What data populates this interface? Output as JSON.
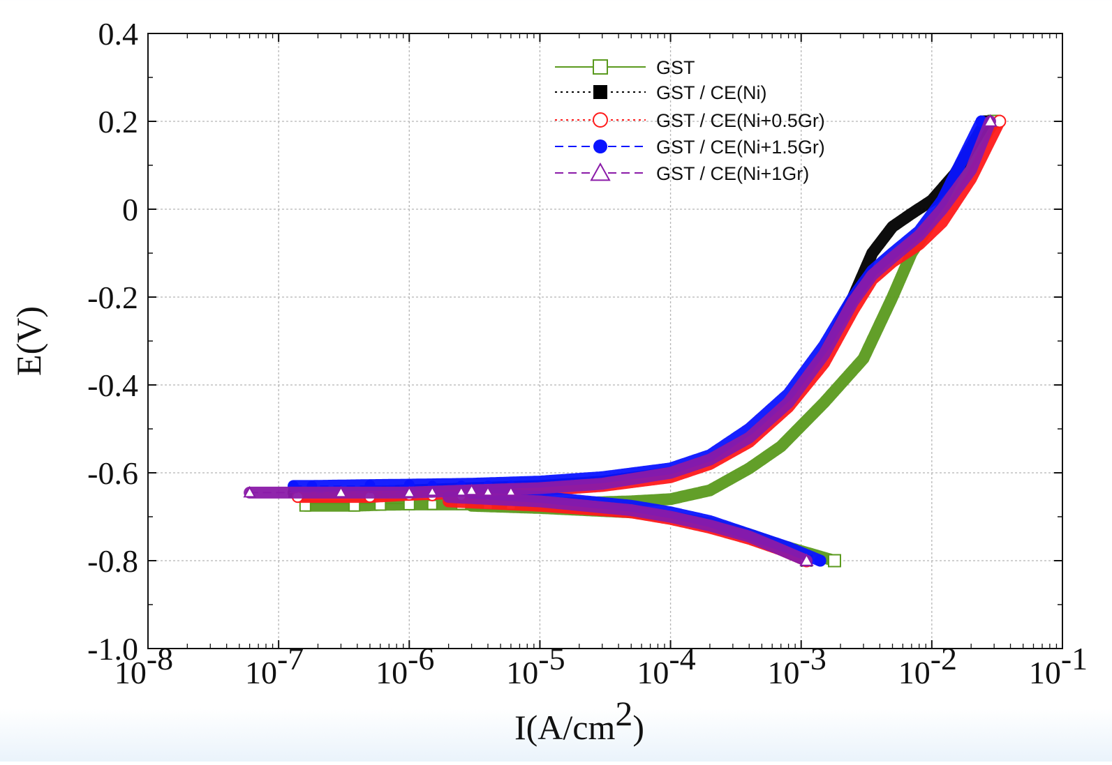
{
  "chart_data": {
    "type": "scatter",
    "title": "",
    "xlabel": "I(A/cm2)",
    "xlabel_main": "I(A/cm",
    "xlabel_sup": "2",
    "xlabel_close": ")",
    "ylabel": "E(V)",
    "xscale": "log",
    "xlim": [
      1e-08,
      0.1
    ],
    "ylim": [
      -1.0,
      0.4
    ],
    "grid": true,
    "legend_position": "top-center",
    "x_ticks": [
      {
        "base": "10",
        "exp": "-8",
        "value": 1e-08
      },
      {
        "base": "10",
        "exp": "-7",
        "value": 1e-07
      },
      {
        "base": "10",
        "exp": "-6",
        "value": 1e-06
      },
      {
        "base": "10",
        "exp": "-5",
        "value": 1e-05
      },
      {
        "base": "10",
        "exp": "-4",
        "value": 0.0001
      },
      {
        "base": "10",
        "exp": "-3",
        "value": 0.001
      },
      {
        "base": "10",
        "exp": "-2",
        "value": 0.01
      },
      {
        "base": "10",
        "exp": "-1",
        "value": 0.1
      }
    ],
    "y_ticks": [
      {
        "label": "0.4",
        "value": 0.4
      },
      {
        "label": "0.2",
        "value": 0.2
      },
      {
        "label": "0",
        "value": 0.0
      },
      {
        "label": "-0.2",
        "value": -0.2
      },
      {
        "label": "-0.4",
        "value": -0.4
      },
      {
        "label": "-0.6",
        "value": -0.6
      },
      {
        "label": "-0.8",
        "value": -0.8
      },
      {
        "label": "-1.0",
        "value": -1.0
      }
    ],
    "series": [
      {
        "name": "GST",
        "legend_label": "GST",
        "color": "#5a9a1e",
        "marker": "square-open",
        "line": "solid",
        "ecorr": -0.67,
        "anodic": [
          [
            1.6e-07,
            -0.675
          ],
          [
            3.8e-07,
            -0.675
          ],
          [
            6e-07,
            -0.673
          ],
          [
            1e-06,
            -0.672
          ],
          [
            3e-06,
            -0.672
          ],
          [
            1e-05,
            -0.671
          ],
          [
            5e-05,
            -0.665
          ],
          [
            0.0001,
            -0.66
          ],
          [
            0.0002,
            -0.64
          ],
          [
            0.0004,
            -0.59
          ],
          [
            0.0007,
            -0.54
          ],
          [
            0.0015,
            -0.44
          ],
          [
            0.003,
            -0.34
          ],
          [
            0.005,
            -0.2
          ],
          [
            0.007,
            -0.1
          ],
          [
            0.01,
            -0.03
          ],
          [
            0.015,
            0.05
          ],
          [
            0.025,
            0.16
          ],
          [
            0.03,
            0.2
          ]
        ],
        "cathodic": [
          [
            3e-06,
            -0.675
          ],
          [
            1e-05,
            -0.68
          ],
          [
            5e-05,
            -0.69
          ],
          [
            0.0001,
            -0.7
          ],
          [
            0.0002,
            -0.715
          ],
          [
            0.0004,
            -0.74
          ],
          [
            0.0007,
            -0.765
          ],
          [
            0.0012,
            -0.785
          ],
          [
            0.0018,
            -0.8
          ]
        ]
      },
      {
        "name": "GST / CE(Ni)",
        "legend_label": "GST  / CE(Ni)",
        "color": "#000000",
        "marker": "square-filled",
        "line": "dotted",
        "ecorr": -0.645,
        "anodic": [
          [
            1.3e-07,
            -0.645
          ],
          [
            4e-07,
            -0.645
          ],
          [
            1e-06,
            -0.64
          ],
          [
            3e-06,
            -0.635
          ],
          [
            1e-05,
            -0.63
          ],
          [
            3e-05,
            -0.62
          ],
          [
            0.0001,
            -0.6
          ],
          [
            0.0002,
            -0.57
          ],
          [
            0.0004,
            -0.52
          ],
          [
            0.0008,
            -0.44
          ],
          [
            0.0015,
            -0.33
          ],
          [
            0.0025,
            -0.2
          ],
          [
            0.0035,
            -0.1
          ],
          [
            0.005,
            -0.04
          ],
          [
            0.007,
            -0.01
          ],
          [
            0.01,
            0.02
          ],
          [
            0.015,
            0.08
          ],
          [
            0.026,
            0.2
          ]
        ],
        "cathodic": [
          [
            2e-06,
            -0.655
          ],
          [
            1e-05,
            -0.665
          ],
          [
            5e-05,
            -0.685
          ],
          [
            0.0001,
            -0.7
          ],
          [
            0.0002,
            -0.72
          ],
          [
            0.0004,
            -0.745
          ],
          [
            0.0007,
            -0.775
          ],
          [
            0.0011,
            -0.8
          ]
        ]
      },
      {
        "name": "GST / CE(Ni+0.5Gr)",
        "legend_label": "GST  / CE(Ni+0.5Gr)",
        "color": "#ff1a1a",
        "marker": "circle-open",
        "line": "dotted",
        "ecorr": -0.655,
        "anodic": [
          [
            1.4e-07,
            -0.655
          ],
          [
            5e-07,
            -0.655
          ],
          [
            1e-06,
            -0.65
          ],
          [
            3e-06,
            -0.645
          ],
          [
            1e-05,
            -0.64
          ],
          [
            3e-05,
            -0.63
          ],
          [
            0.0001,
            -0.61
          ],
          [
            0.0002,
            -0.58
          ],
          [
            0.0004,
            -0.53
          ],
          [
            0.0008,
            -0.45
          ],
          [
            0.0015,
            -0.35
          ],
          [
            0.0025,
            -0.23
          ],
          [
            0.0035,
            -0.16
          ],
          [
            0.005,
            -0.12
          ],
          [
            0.008,
            -0.08
          ],
          [
            0.012,
            -0.03
          ],
          [
            0.02,
            0.07
          ],
          [
            0.033,
            0.2
          ]
        ],
        "cathodic": [
          [
            2e-06,
            -0.665
          ],
          [
            1e-05,
            -0.675
          ],
          [
            5e-05,
            -0.69
          ],
          [
            0.0001,
            -0.705
          ],
          [
            0.0002,
            -0.725
          ],
          [
            0.0004,
            -0.75
          ],
          [
            0.0007,
            -0.775
          ],
          [
            0.0011,
            -0.8
          ]
        ]
      },
      {
        "name": "GST / CE(Ni+1.5Gr)",
        "legend_label": "GST  / CE(Ni+1.5Gr)",
        "color": "#0a14ff",
        "marker": "circle-filled",
        "line": "dashed",
        "ecorr": -0.63,
        "anodic": [
          [
            1.3e-07,
            -0.63
          ],
          [
            1.8e-07,
            -0.63
          ],
          [
            5e-07,
            -0.628
          ],
          [
            1e-06,
            -0.627
          ],
          [
            3e-06,
            -0.625
          ],
          [
            1e-05,
            -0.62
          ],
          [
            3e-05,
            -0.61
          ],
          [
            0.0001,
            -0.59
          ],
          [
            0.0002,
            -0.56
          ],
          [
            0.0004,
            -0.5
          ],
          [
            0.0008,
            -0.42
          ],
          [
            0.0015,
            -0.31
          ],
          [
            0.0025,
            -0.2
          ],
          [
            0.0035,
            -0.14
          ],
          [
            0.005,
            -0.1
          ],
          [
            0.008,
            -0.05
          ],
          [
            0.012,
            0.02
          ],
          [
            0.024,
            0.2
          ]
        ],
        "cathodic": [
          [
            3e-06,
            -0.645
          ],
          [
            1e-05,
            -0.655
          ],
          [
            5e-05,
            -0.675
          ],
          [
            0.0001,
            -0.69
          ],
          [
            0.0002,
            -0.71
          ],
          [
            0.0004,
            -0.74
          ],
          [
            0.0008,
            -0.77
          ],
          [
            0.0014,
            -0.8
          ]
        ]
      },
      {
        "name": "GST / CE(Ni+1Gr)",
        "legend_label": "GST  / CE(Ni+1Gr)",
        "color": "#8a1aa8",
        "marker": "triangle-open",
        "line": "dashed",
        "ecorr": -0.645,
        "anodic": [
          [
            6e-08,
            -0.645
          ],
          [
            3e-07,
            -0.645
          ],
          [
            1e-06,
            -0.645
          ],
          [
            3e-06,
            -0.64
          ],
          [
            1e-05,
            -0.635
          ],
          [
            3e-05,
            -0.625
          ],
          [
            0.0001,
            -0.6
          ],
          [
            0.0002,
            -0.57
          ],
          [
            0.0004,
            -0.52
          ],
          [
            0.0008,
            -0.44
          ],
          [
            0.0015,
            -0.33
          ],
          [
            0.0025,
            -0.21
          ],
          [
            0.0035,
            -0.15
          ],
          [
            0.005,
            -0.11
          ],
          [
            0.008,
            -0.06
          ],
          [
            0.012,
            0.0
          ],
          [
            0.02,
            0.09
          ],
          [
            0.028,
            0.2
          ]
        ],
        "cathodic": [
          [
            2e-06,
            -0.655
          ],
          [
            1e-05,
            -0.665
          ],
          [
            5e-05,
            -0.685
          ],
          [
            0.0001,
            -0.7
          ],
          [
            0.0002,
            -0.72
          ],
          [
            0.0004,
            -0.745
          ],
          [
            0.0007,
            -0.775
          ],
          [
            0.0011,
            -0.8
          ]
        ]
      }
    ]
  }
}
